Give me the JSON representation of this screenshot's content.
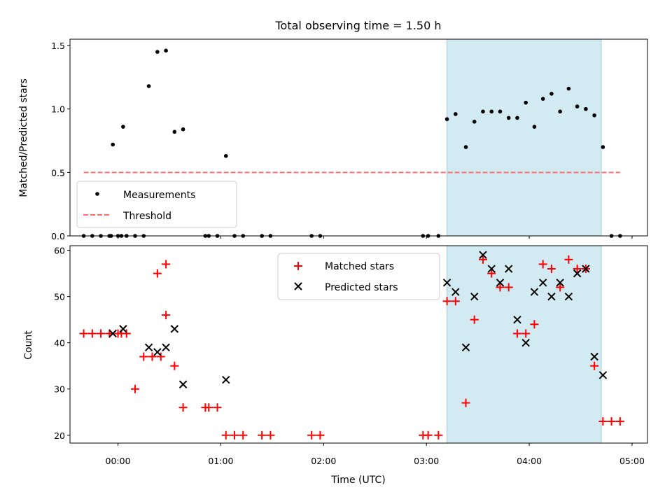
{
  "title": "Total observing time = 1.50 h",
  "xlabel": "Time (UTC)",
  "xtick_labels": [
    "00:00",
    "01:00",
    "02:00",
    "03:00",
    "04:00",
    "05:00"
  ],
  "colors": {
    "highlight": "#add8e6",
    "measurements": "#000000",
    "threshold": "#ff6f6f",
    "matched": "#ff0000",
    "predicted": "#000000"
  },
  "chart_data": [
    {
      "type": "scatter",
      "ylabel": "Matched/Predicted stars",
      "xlim": [
        "23:32",
        "05:09"
      ],
      "ylim": [
        0,
        1.55
      ],
      "yticks": [
        0.0,
        0.5,
        1.0,
        1.5
      ],
      "ytick_labels": [
        "0.0",
        "0.5",
        "1.0",
        "1.5"
      ],
      "highlight_span": [
        "03:12",
        "04:42"
      ],
      "legend_position": "lower left",
      "series": [
        {
          "name": "Measurements",
          "marker": "dot",
          "points": [
            [
              "23:40",
              0
            ],
            [
              "23:45",
              0
            ],
            [
              "23:50",
              0
            ],
            [
              "23:55",
              0
            ],
            [
              "00:00",
              0.0
            ],
            [
              "00:02",
              0.0
            ],
            [
              "00:05",
              0.0
            ],
            [
              "00:10",
              0.0
            ],
            [
              "00:15",
              0.0
            ],
            [
              "-00:04",
              0.0
            ],
            [
              "-00:03",
              0.72
            ],
            [
              "00:03",
              0.86
            ],
            [
              "00:18",
              1.18
            ],
            [
              "00:23",
              1.45
            ],
            [
              "00:28",
              1.46
            ],
            [
              "00:33",
              0.82
            ],
            [
              "00:38",
              0.84
            ],
            [
              "00:51",
              0.0
            ],
            [
              "00:53",
              0.0
            ],
            [
              "01:03",
              0.63
            ],
            [
              "00:58",
              0.0
            ],
            [
              "01:08",
              0.0
            ],
            [
              "01:13",
              0.0
            ],
            [
              "01:24",
              0.0
            ],
            [
              "01:29",
              0.0
            ],
            [
              "01:53",
              0.0
            ],
            [
              "01:58",
              0.0
            ],
            [
              "02:58",
              0.0
            ],
            [
              "03:01",
              0.0
            ],
            [
              "03:07",
              0.0
            ],
            [
              "03:12",
              0.92
            ],
            [
              "03:17",
              0.96
            ],
            [
              "03:23",
              0.7
            ],
            [
              "03:28",
              0.9
            ],
            [
              "03:33",
              0.98
            ],
            [
              "03:38",
              0.98
            ],
            [
              "03:43",
              0.98
            ],
            [
              "03:48",
              0.93
            ],
            [
              "03:53",
              0.93
            ],
            [
              "03:58",
              1.05
            ],
            [
              "04:03",
              0.86
            ],
            [
              "04:08",
              1.08
            ],
            [
              "04:13",
              1.12
            ],
            [
              "04:18",
              0.98
            ],
            [
              "04:23",
              1.16
            ],
            [
              "04:28",
              1.02
            ],
            [
              "04:33",
              1.0
            ],
            [
              "04:38",
              0.95
            ],
            [
              "04:43",
              0.7
            ],
            [
              "04:48",
              0.0
            ],
            [
              "04:53",
              0.0
            ]
          ]
        },
        {
          "name": "Threshold",
          "line_style": "dashed",
          "points": [
            [
              "23:40",
              0.5
            ],
            [
              "04:53",
              0.5
            ]
          ]
        }
      ]
    },
    {
      "type": "scatter",
      "ylabel": "Count",
      "xlim": [
        "23:32",
        "05:09"
      ],
      "ylim": [
        18.3,
        61
      ],
      "yticks": [
        20,
        30,
        40,
        50,
        60
      ],
      "ytick_labels": [
        "20",
        "30",
        "40",
        "50",
        "60"
      ],
      "highlight_span": [
        "03:12",
        "04:42"
      ],
      "legend_position": "upper center",
      "series": [
        {
          "name": "Matched stars",
          "marker": "plus",
          "points": [
            [
              "23:40",
              42
            ],
            [
              "23:45",
              42
            ],
            [
              "23:50",
              42
            ],
            [
              "23:55",
              42
            ],
            [
              "00:00",
              42
            ],
            [
              "00:02",
              42
            ],
            [
              "00:05",
              42
            ],
            [
              "00:10",
              30
            ],
            [
              "00:15",
              37
            ],
            [
              "00:20",
              37
            ],
            [
              "00:25",
              37
            ],
            [
              "00:28",
              46
            ],
            [
              "00:23",
              55
            ],
            [
              "00:28",
              57
            ],
            [
              "00:33",
              35
            ],
            [
              "00:38",
              26
            ],
            [
              "00:51",
              26
            ],
            [
              "00:53",
              26
            ],
            [
              "00:58",
              26
            ],
            [
              "01:03",
              20
            ],
            [
              "01:08",
              20
            ],
            [
              "01:13",
              20
            ],
            [
              "01:24",
              20
            ],
            [
              "01:29",
              20
            ],
            [
              "01:53",
              20
            ],
            [
              "01:58",
              20
            ],
            [
              "02:58",
              20
            ],
            [
              "03:01",
              20
            ],
            [
              "03:07",
              20
            ],
            [
              "03:12",
              49
            ],
            [
              "03:17",
              49
            ],
            [
              "03:23",
              27
            ],
            [
              "03:28",
              45
            ],
            [
              "03:33",
              58
            ],
            [
              "03:38",
              55
            ],
            [
              "03:43",
              52
            ],
            [
              "03:48",
              52
            ],
            [
              "03:53",
              42
            ],
            [
              "03:58",
              42
            ],
            [
              "04:03",
              44
            ],
            [
              "04:08",
              57
            ],
            [
              "04:13",
              56
            ],
            [
              "04:18",
              52
            ],
            [
              "04:23",
              58
            ],
            [
              "04:28",
              56
            ],
            [
              "04:33",
              56
            ],
            [
              "04:38",
              35
            ],
            [
              "04:43",
              23
            ],
            [
              "04:48",
              23
            ],
            [
              "04:53",
              23
            ]
          ]
        },
        {
          "name": "Predicted stars",
          "marker": "x",
          "points": [
            [
              "-00:03",
              42
            ],
            [
              "00:03",
              43
            ],
            [
              "00:18",
              39
            ],
            [
              "00:23",
              38
            ],
            [
              "00:28",
              39
            ],
            [
              "00:33",
              43
            ],
            [
              "00:38",
              31
            ],
            [
              "01:03",
              32
            ],
            [
              "03:12",
              53
            ],
            [
              "03:17",
              51
            ],
            [
              "03:23",
              39
            ],
            [
              "03:28",
              50
            ],
            [
              "03:33",
              59
            ],
            [
              "03:38",
              56
            ],
            [
              "03:43",
              53
            ],
            [
              "03:48",
              56
            ],
            [
              "03:53",
              45
            ],
            [
              "03:58",
              40
            ],
            [
              "04:03",
              51
            ],
            [
              "04:08",
              53
            ],
            [
              "04:13",
              50
            ],
            [
              "04:18",
              53
            ],
            [
              "04:23",
              50
            ],
            [
              "04:28",
              55
            ],
            [
              "04:33",
              56
            ],
            [
              "04:38",
              37
            ],
            [
              "04:43",
              33
            ]
          ]
        }
      ]
    }
  ]
}
